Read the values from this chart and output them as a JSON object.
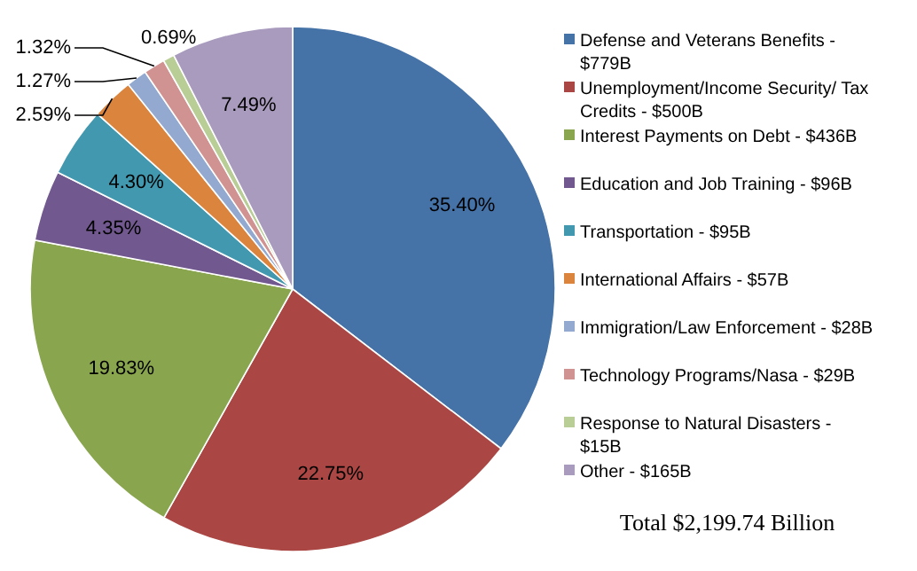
{
  "chart_data": {
    "type": "pie",
    "legend": "right",
    "categories": [
      "Defense and Veterans Benefits - $779B",
      "Unemployment/Income Security/ Tax Credits - $500B",
      "Interest Payments on Debt - $436B",
      "Education and Job Training - $96B",
      "Transportation - $95B",
      "International Affairs - $57B",
      "Immigration/Law Enforcement - $28B",
      "Technology Programs/Nasa - $29B",
      "Response to Natural Disasters - $15B",
      "Other - $165B"
    ],
    "values": [
      35.4,
      22.75,
      19.83,
      4.35,
      4.3,
      2.59,
      1.27,
      1.32,
      0.69,
      7.49
    ],
    "colors": [
      "#4572a7",
      "#aa4643",
      "#89a54e",
      "#71588f",
      "#4198af",
      "#db843d",
      "#93a9cf",
      "#d19392",
      "#b9cd96",
      "#a99bbd"
    ],
    "value_labels": [
      "35.40%",
      "22.75%",
      "19.83%",
      "4.35%",
      "4.30%",
      "2.59%",
      "1.27%",
      "1.32%",
      "0.69%",
      "7.49%"
    ],
    "annotations": [
      "Total $2,199.74 Billion"
    ]
  }
}
